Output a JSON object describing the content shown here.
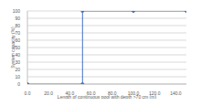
{
  "chart_data": {
    "type": "line",
    "x_label": "Length of continuous pool  with depth >70 cm (m)",
    "y_label": "System capacity (%)",
    "series": [
      {
        "name": "System capacity",
        "color": "#4472c4",
        "x": [
          0,
          52,
          52,
          100,
          150
        ],
        "values": [
          0,
          0,
          100,
          100,
          100
        ],
        "marker": "circle",
        "line_style": "solid"
      }
    ],
    "xlim": [
      0,
      150
    ],
    "xticks": [
      {
        "value": 0,
        "label": "0.0"
      },
      {
        "value": 20,
        "label": "20.0"
      },
      {
        "value": 40,
        "label": "40.0"
      },
      {
        "value": 60,
        "label": "60.0"
      },
      {
        "value": 80,
        "label": "80.0"
      },
      {
        "value": 100,
        "label": "100.0"
      },
      {
        "value": 120,
        "label": "120.0"
      },
      {
        "value": 140,
        "label": "140.0"
      }
    ],
    "ylim": [
      0,
      100
    ],
    "yticks": [
      0,
      10,
      20,
      30,
      40,
      50,
      60,
      70,
      80,
      90,
      100
    ],
    "grid": true
  }
}
